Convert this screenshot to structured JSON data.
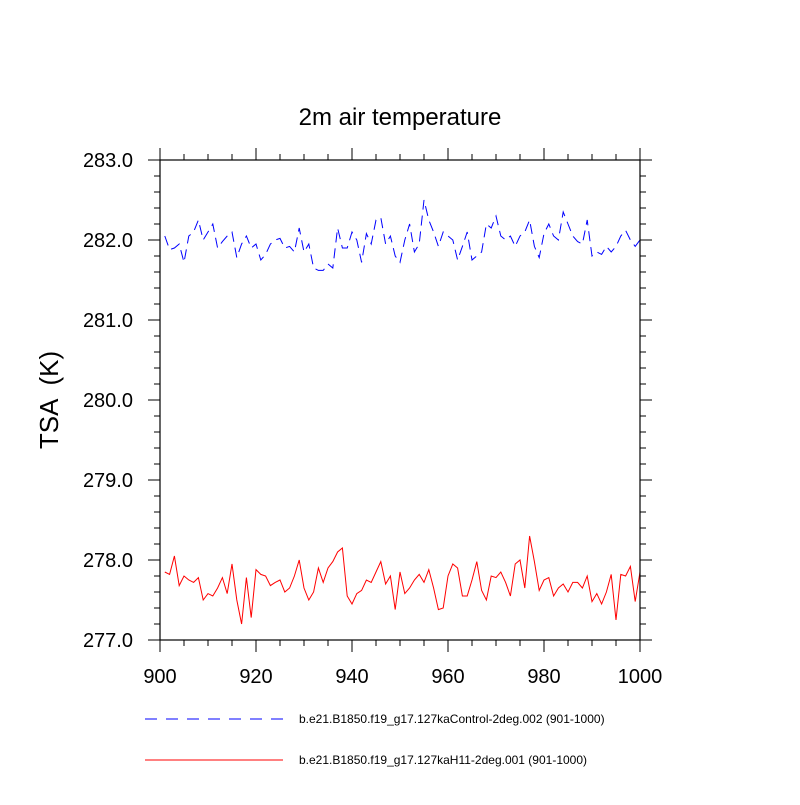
{
  "chart_data": {
    "type": "line",
    "title": "2m air temperature",
    "xlabel": "",
    "ylabel": "TSA  (K)",
    "xlim": [
      900,
      1000
    ],
    "ylim": [
      277.0,
      283.0
    ],
    "x_ticks": [
      900,
      920,
      940,
      960,
      980,
      1000
    ],
    "x_tick_labels": [
      "900",
      "920",
      "940",
      "960",
      "980",
      "1000"
    ],
    "y_ticks": [
      277.0,
      278.0,
      279.0,
      280.0,
      281.0,
      282.0,
      283.0
    ],
    "y_tick_labels": [
      "277.0",
      "278.0",
      "279.0",
      "280.0",
      "281.0",
      "282.0",
      "283.0"
    ],
    "x": [
      901,
      902,
      903,
      904,
      905,
      906,
      907,
      908,
      909,
      910,
      911,
      912,
      913,
      914,
      915,
      916,
      917,
      918,
      919,
      920,
      921,
      922,
      923,
      924,
      925,
      926,
      927,
      928,
      929,
      930,
      931,
      932,
      933,
      934,
      935,
      936,
      937,
      938,
      939,
      940,
      941,
      942,
      943,
      944,
      945,
      946,
      947,
      948,
      949,
      950,
      951,
      952,
      953,
      954,
      955,
      956,
      957,
      958,
      959,
      960,
      961,
      962,
      963,
      964,
      965,
      966,
      967,
      968,
      969,
      970,
      971,
      972,
      973,
      974,
      975,
      976,
      977,
      978,
      979,
      980,
      981,
      982,
      983,
      984,
      985,
      986,
      987,
      988,
      989,
      990,
      991,
      992,
      993,
      994,
      995,
      996,
      997,
      998,
      999,
      1000
    ],
    "series": [
      {
        "name": "b.e21.B1850.f19_g17.127kaControl-2deg.002 (901-1000)",
        "color": "#0000ff",
        "dash": "dashed",
        "values": [
          282.05,
          281.88,
          281.9,
          281.95,
          281.72,
          282.05,
          282.1,
          282.25,
          282.0,
          282.1,
          282.2,
          281.9,
          281.98,
          282.05,
          282.1,
          281.78,
          281.95,
          282.05,
          281.9,
          281.95,
          281.75,
          281.82,
          281.95,
          282.0,
          282.02,
          281.9,
          281.92,
          281.85,
          282.15,
          281.85,
          281.95,
          281.65,
          281.62,
          281.62,
          281.7,
          281.65,
          282.15,
          281.9,
          281.9,
          282.1,
          282.0,
          281.72,
          282.08,
          281.95,
          282.25,
          282.28,
          281.95,
          282.05,
          281.8,
          281.72,
          282.0,
          282.2,
          281.85,
          281.95,
          282.5,
          282.25,
          282.1,
          281.92,
          282.1,
          282.05,
          282.0,
          281.75,
          281.92,
          282.1,
          281.75,
          281.8,
          281.85,
          282.2,
          282.15,
          282.3,
          282.05,
          282.0,
          282.05,
          281.92,
          282.05,
          282.1,
          282.25,
          281.92,
          281.78,
          282.08,
          282.2,
          282.05,
          282.0,
          282.35,
          282.2,
          282.05,
          281.98,
          281.95,
          282.25,
          281.8,
          281.85,
          281.82,
          281.92,
          281.85,
          281.92,
          282.05,
          282.12,
          282.0,
          281.92,
          282.0
        ]
      },
      {
        "name": "b.e21.B1850.f19_g17.127kaH11-2deg.001 (901-1000)",
        "color": "#ff0000",
        "dash": "solid",
        "values": [
          277.85,
          277.82,
          278.05,
          277.68,
          277.8,
          277.75,
          277.72,
          277.78,
          277.5,
          277.58,
          277.55,
          277.65,
          277.78,
          277.58,
          277.95,
          277.5,
          277.2,
          277.78,
          277.28,
          277.88,
          277.82,
          277.8,
          277.68,
          277.72,
          277.75,
          277.6,
          277.65,
          277.8,
          278.0,
          277.65,
          277.5,
          277.6,
          277.9,
          277.72,
          277.9,
          277.98,
          278.1,
          278.15,
          277.55,
          277.45,
          277.58,
          277.62,
          277.75,
          277.72,
          277.85,
          277.98,
          277.7,
          277.8,
          277.38,
          277.85,
          277.58,
          277.65,
          277.75,
          277.82,
          277.72,
          277.88,
          277.65,
          277.38,
          277.4,
          277.8,
          277.95,
          277.9,
          277.55,
          277.55,
          277.75,
          277.98,
          277.62,
          277.5,
          277.8,
          277.78,
          277.85,
          277.72,
          277.55,
          277.95,
          278.0,
          277.65,
          278.3,
          277.98,
          277.62,
          277.75,
          277.78,
          277.55,
          277.65,
          277.7,
          277.6,
          277.72,
          277.72,
          277.65,
          277.8,
          277.48,
          277.58,
          277.45,
          277.6,
          277.82,
          277.25,
          277.82,
          277.8,
          277.92,
          277.48,
          277.85
        ]
      }
    ]
  }
}
